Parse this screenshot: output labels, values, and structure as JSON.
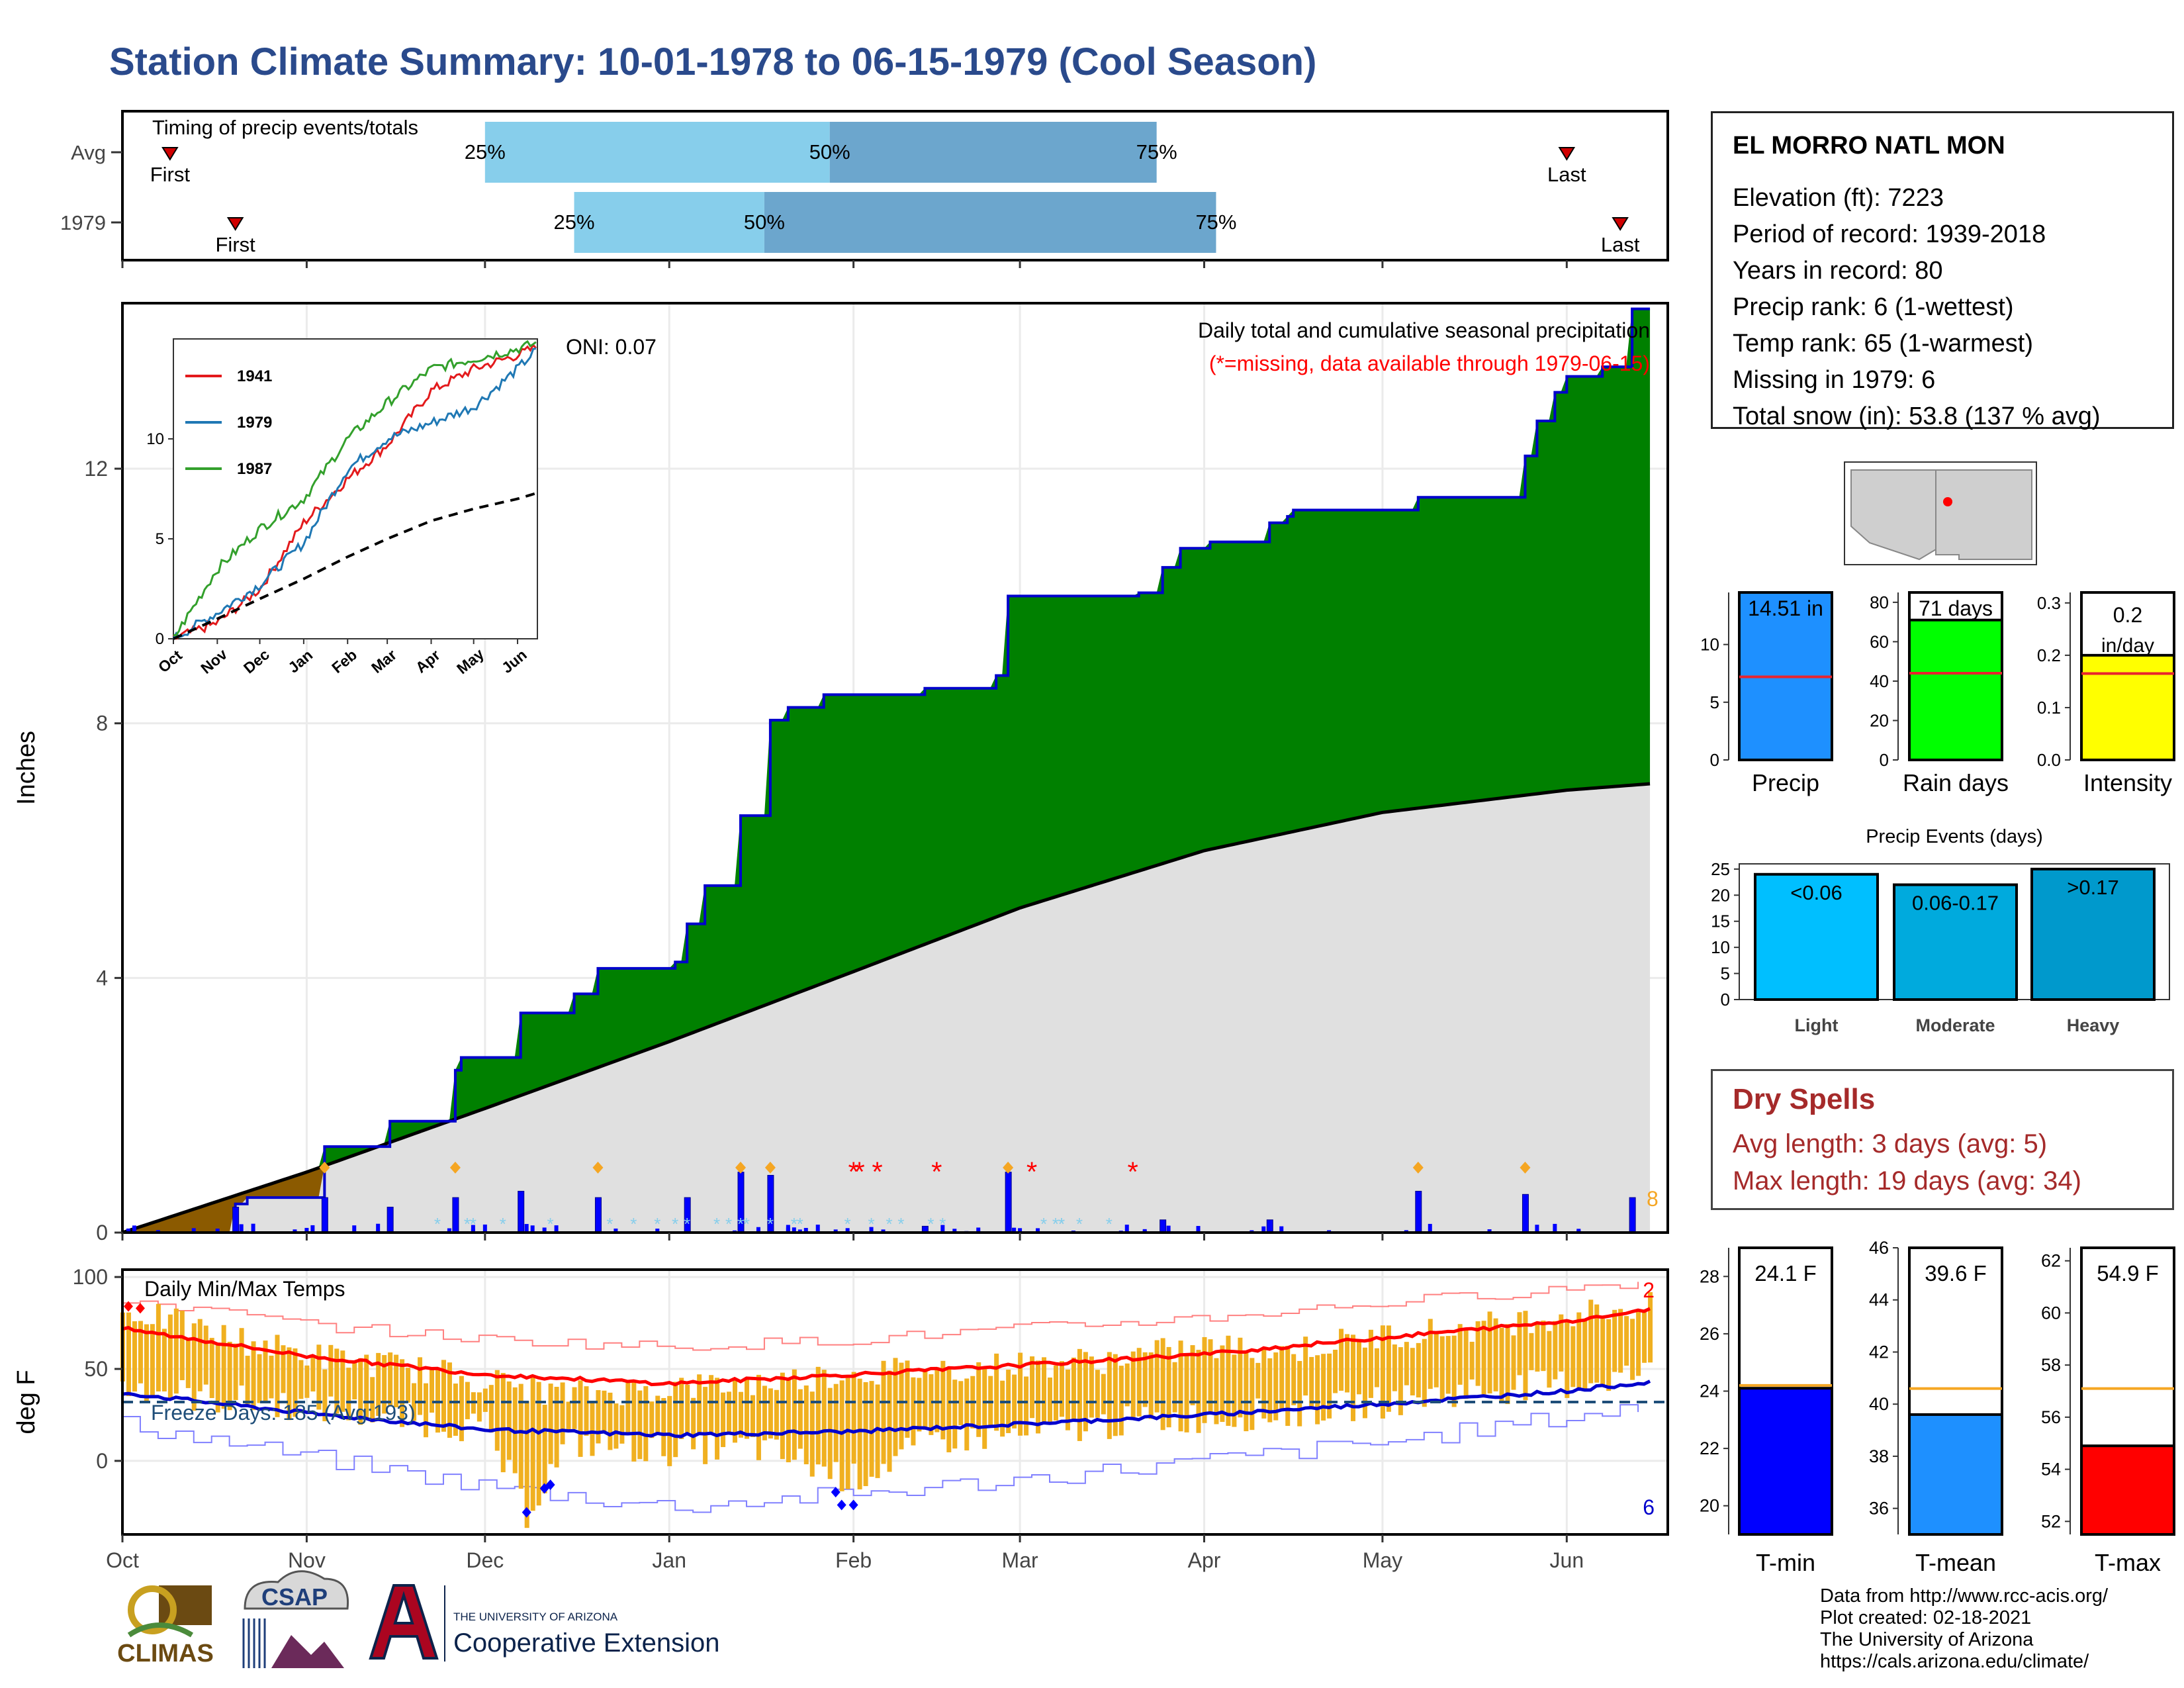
{
  "title": "Station Climate Summary: 10-01-1978 to 06-15-1979 (Cool Season)",
  "colors": {
    "title": "#2a4a8c",
    "accumulated_precip": "#008000",
    "deficit_precip": "#8b5a00",
    "avg_cumulative": "#e0e0e0",
    "daily_precip_bar": "#0000ff",
    "temp_range_bar": "#f0b020",
    "tmax_avg_line": "#ff0000",
    "tmin_avg_line": "#0000cc",
    "missing_marker": "#ff0000",
    "dry_spells_text": "#a52a2a"
  },
  "timing": {
    "label": "Timing of precip events/totals",
    "rows": [
      {
        "row_label": "Avg",
        "first_label": "First",
        "last_label": "Last",
        "first_date": "1978-10-09",
        "p25_date": "1978-12-01",
        "p50_date": "1979-01-28",
        "p75_date": "1979-03-24",
        "last_date": "1979-06-01",
        "p25_label": "25%",
        "p50_label": "50%",
        "p75_label": "75%"
      },
      {
        "row_label": "1979",
        "first_label": "First",
        "last_label": "Last",
        "first_date": "1978-10-20",
        "p25_date": "1978-12-16",
        "p50_date": "1979-01-17",
        "p75_date": "1979-04-03",
        "last_date": "1979-06-10",
        "p25_label": "25%",
        "p50_label": "50%",
        "p75_label": "75%"
      }
    ]
  },
  "precip_panel": {
    "ylabel": "Inches",
    "yticks": [
      0,
      4,
      8,
      12
    ],
    "annotation_title": "Daily total and cumulative seasonal precipitation",
    "annotation_missing": "(*=missing, data available through 1979-06-15)",
    "oni_label": "ONI: 0.07",
    "count_label": "8",
    "months": [
      "Oct",
      "Nov",
      "Dec",
      "Jan",
      "Feb",
      "Mar",
      "Apr",
      "May",
      "Jun"
    ]
  },
  "inset": {
    "legend": [
      {
        "name": "1941",
        "color": "#e31a1c"
      },
      {
        "name": "1979",
        "color": "#1f78b4"
      },
      {
        "name": "1987",
        "color": "#33a02c"
      }
    ],
    "yticks": [
      0,
      5,
      10
    ],
    "xticks": [
      "Oct",
      "Nov",
      "Dec",
      "Jan",
      "Feb",
      "Mar",
      "Apr",
      "May",
      "Jun"
    ]
  },
  "temp_panel": {
    "title": "Daily Min/Max Temps",
    "ylabel": "deg F",
    "yticks": [
      0,
      50,
      100
    ],
    "freeze_label": "Freeze Days: 185 (Avg:193)",
    "record_high_count": "2",
    "record_low_count": "6",
    "freeze_line_value": 32,
    "months": [
      "Oct",
      "Nov",
      "Dec",
      "Jan",
      "Feb",
      "Mar",
      "Apr",
      "May",
      "Jun"
    ]
  },
  "station": {
    "name": "EL MORRO NATL MON",
    "rows": [
      "Elevation (ft): 7223",
      "Period of record: 1939-2018",
      "Years in record: 80",
      "Precip rank: 6 (1-wettest)",
      "Temp rank: 65 (1-warmest)",
      "Missing in 1979: 6",
      "Total snow (in): 53.8 (137 % avg)"
    ]
  },
  "precip_bars": [
    {
      "label": "Precip",
      "value_label": "14.51 in",
      "value": 14.51,
      "avg": 7.2,
      "ymax": 14.51,
      "yticks": [
        0,
        5,
        10
      ],
      "color": "#1e90ff"
    },
    {
      "label": "Rain days",
      "value_label": "71 days",
      "value": 71,
      "avg": 44,
      "ymax": 85,
      "yticks": [
        0,
        20,
        40,
        60,
        80
      ],
      "color": "#00ff00"
    },
    {
      "label": "Intensity",
      "value_label": "0.2 in/day",
      "value": 0.2,
      "avg": 0.165,
      "ymax": 0.32,
      "yticks": [
        0.0,
        0.1,
        0.2,
        0.3
      ],
      "color": "#ffff00"
    }
  ],
  "precip_events": {
    "title": "Precip Events (days)",
    "yticks": [
      0,
      5,
      10,
      15,
      20,
      25
    ],
    "bars": [
      {
        "category": "Light",
        "label": "<0.06",
        "value": 24,
        "color": "#00bfff"
      },
      {
        "category": "Moderate",
        "label": "0.06-0.17",
        "value": 22,
        "color": "#00aadd"
      },
      {
        "category": "Heavy",
        "label": ">0.17",
        "value": 25,
        "color": "#0099cc"
      }
    ]
  },
  "dry_spells": {
    "title": "Dry Spells",
    "rows": [
      "Avg length: 3 days (avg: 5)",
      "Max length: 19 days (avg: 34)"
    ]
  },
  "temp_bars": [
    {
      "label": "T-min",
      "value_label": "24.1 F",
      "value": 24.1,
      "avg": 24.2,
      "ymin": 19,
      "ymax": 29,
      "yticks": [
        20,
        22,
        24,
        26,
        28
      ],
      "color": "#0000ff"
    },
    {
      "label": "T-mean",
      "value_label": "39.6 F",
      "value": 39.6,
      "avg": 40.6,
      "ymin": 35,
      "ymax": 46,
      "yticks": [
        36,
        38,
        40,
        42,
        44,
        46
      ],
      "color": "#1e90ff"
    },
    {
      "label": "T-max",
      "value_label": "54.9 F",
      "value": 54.9,
      "avg": 57.1,
      "ymin": 51.5,
      "ymax": 62.5,
      "yticks": [
        52,
        54,
        56,
        58,
        60,
        62
      ],
      "color": "#ff0000"
    }
  ],
  "footer": {
    "lines": [
      "Data from http://www.rcc-acis.org/",
      "Plot created: 02-18-2021",
      "The University of Arizona",
      "https://cals.arizona.edu/climate/"
    ],
    "climas": "CLIMAS",
    "csap": "CSAP",
    "ua_top": "THE UNIVERSITY OF ARIZONA",
    "ua_bottom": "Cooperative Extension"
  },
  "chart_data": [
    {
      "type": "area",
      "title": "Daily total and cumulative seasonal precipitation",
      "ylabel": "Inches",
      "ylim": [
        0,
        14.6
      ],
      "series": [
        {
          "name": "1979",
          "points": [
            [
              "1978-10-01",
              0
            ],
            [
              "1978-10-20",
              0.45
            ],
            [
              "1978-10-22",
              0.55
            ],
            [
              "1978-11-03",
              0.55
            ],
            [
              "1978-11-04",
              1.35
            ],
            [
              "1978-11-14",
              1.35
            ],
            [
              "1978-11-15",
              1.75
            ],
            [
              "1978-11-25",
              1.75
            ],
            [
              "1978-11-26",
              2.55
            ],
            [
              "1978-11-27",
              2.75
            ],
            [
              "1978-12-01",
              2.75
            ],
            [
              "1978-12-07",
              3.45
            ],
            [
              "1978-12-16",
              3.75
            ],
            [
              "1978-12-20",
              4.15
            ],
            [
              "1979-01-02",
              4.25
            ],
            [
              "1979-01-04",
              4.85
            ],
            [
              "1979-01-07",
              5.45
            ],
            [
              "1979-01-13",
              6.55
            ],
            [
              "1979-01-18",
              8.05
            ],
            [
              "1979-01-21",
              8.25
            ],
            [
              "1979-01-27",
              8.45
            ],
            [
              "1979-02-13",
              8.55
            ],
            [
              "1979-02-25",
              8.75
            ],
            [
              "1979-02-27",
              10.0
            ],
            [
              "1979-03-21",
              10.05
            ],
            [
              "1979-03-25",
              10.45
            ],
            [
              "1979-03-28",
              10.75
            ],
            [
              "1979-04-02",
              10.85
            ],
            [
              "1979-04-12",
              11.15
            ],
            [
              "1979-04-15",
              11.25
            ],
            [
              "1979-04-16",
              11.35
            ],
            [
              "1979-05-07",
              11.55
            ],
            [
              "1979-05-25",
              12.2
            ],
            [
              "1979-05-27",
              12.75
            ],
            [
              "1979-05-30",
              13.2
            ],
            [
              "1979-06-01",
              13.45
            ],
            [
              "1979-06-07",
              13.6
            ],
            [
              "1979-06-12",
              14.51
            ],
            [
              "1979-06-15",
              14.51
            ]
          ]
        },
        {
          "name": "Avg",
          "points": [
            [
              "1978-10-01",
              0
            ],
            [
              "1978-11-01",
              0.95
            ],
            [
              "1978-12-01",
              1.95
            ],
            [
              "1979-01-01",
              3.0
            ],
            [
              "1979-02-01",
              4.1
            ],
            [
              "1979-03-01",
              5.1
            ],
            [
              "1979-04-01",
              6.0
            ],
            [
              "1979-05-01",
              6.6
            ],
            [
              "1979-06-01",
              6.95
            ],
            [
              "1979-06-15",
              7.05
            ]
          ]
        }
      ],
      "daily_precip": [
        [
          "1978-10-20",
          0.4
        ],
        [
          "1978-11-04",
          0.55
        ],
        [
          "1978-11-15",
          0.4
        ],
        [
          "1978-11-26",
          0.55
        ],
        [
          "1978-12-07",
          0.65
        ],
        [
          "1978-12-20",
          0.55
        ],
        [
          "1979-01-04",
          0.55
        ],
        [
          "1979-01-13",
          0.95
        ],
        [
          "1979-01-18",
          0.9
        ],
        [
          "1979-02-13",
          0.1
        ],
        [
          "1979-02-27",
          0.95
        ],
        [
          "1979-03-25",
          0.2
        ],
        [
          "1979-04-12",
          0.2
        ],
        [
          "1979-05-07",
          0.65
        ],
        [
          "1979-05-25",
          0.6
        ],
        [
          "1979-06-12",
          0.55
        ]
      ],
      "missing_dates": [
        "1979-02-01",
        "1979-02-02",
        "1979-02-05",
        "1979-02-15",
        "1979-03-03",
        "1979-03-20"
      ]
    },
    {
      "type": "line",
      "title": "",
      "xlabel": "",
      "ylim": [
        0,
        15
      ],
      "series": [
        {
          "name": "1941",
          "points": [
            [
              "1978-10-01",
              0
            ],
            [
              "1978-11-01",
              0.8
            ],
            [
              "1978-12-01",
              2.5
            ],
            [
              "1979-01-01",
              5.8
            ],
            [
              "1979-02-01",
              8.0
            ],
            [
              "1979-03-01",
              9.7
            ],
            [
              "1979-04-01",
              12.4
            ],
            [
              "1979-05-01",
              13.5
            ],
            [
              "1979-06-01",
              14.2
            ],
            [
              "1979-06-15",
              14.6
            ]
          ]
        },
        {
          "name": "1979",
          "points": [
            [
              "1978-10-01",
              0
            ],
            [
              "1978-11-01",
              1.3
            ],
            [
              "1978-12-01",
              2.7
            ],
            [
              "1979-01-01",
              4.8
            ],
            [
              "1979-02-01",
              8.5
            ],
            [
              "1979-03-01",
              10.0
            ],
            [
              "1979-04-01",
              10.8
            ],
            [
              "1979-05-01",
              11.6
            ],
            [
              "1979-06-01",
              13.5
            ],
            [
              "1979-06-15",
              14.5
            ]
          ]
        },
        {
          "name": "1987",
          "points": [
            [
              "1978-10-01",
              0
            ],
            [
              "1978-11-01",
              3.5
            ],
            [
              "1978-12-01",
              5.5
            ],
            [
              "1979-01-01",
              7.0
            ],
            [
              "1979-02-01",
              10.0
            ],
            [
              "1979-03-01",
              11.8
            ],
            [
              "1979-04-01",
              13.5
            ],
            [
              "1979-05-01",
              14.0
            ],
            [
              "1979-06-01",
              14.5
            ],
            [
              "1979-06-15",
              14.8
            ]
          ]
        },
        {
          "name": "Avg",
          "points": [
            [
              "1978-10-01",
              0
            ],
            [
              "1978-11-01",
              1.0
            ],
            [
              "1978-12-01",
              2.0
            ],
            [
              "1979-01-01",
              3.0
            ],
            [
              "1979-02-01",
              4.1
            ],
            [
              "1979-03-01",
              5.0
            ],
            [
              "1979-04-01",
              5.9
            ],
            [
              "1979-05-01",
              6.5
            ],
            [
              "1979-06-01",
              7.0
            ],
            [
              "1979-06-15",
              7.3
            ]
          ]
        }
      ]
    },
    {
      "type": "bar",
      "title": "Daily Min/Max Temps",
      "ylabel": "deg F",
      "ylim": [
        -40,
        104
      ],
      "avg_tmax": [
        [
          "1978-10-01",
          72
        ],
        [
          "1978-11-01",
          57
        ],
        [
          "1978-12-01",
          47
        ],
        [
          "1979-01-01",
          42
        ],
        [
          "1979-02-01",
          47
        ],
        [
          "1979-03-01",
          52
        ],
        [
          "1979-04-01",
          58
        ],
        [
          "1979-05-01",
          67
        ],
        [
          "1979-06-01",
          76
        ],
        [
          "1979-06-15",
          82
        ]
      ],
      "avg_tmin": [
        [
          "1978-10-01",
          37
        ],
        [
          "1978-11-01",
          26
        ],
        [
          "1978-12-01",
          17
        ],
        [
          "1979-01-01",
          14
        ],
        [
          "1979-02-01",
          16
        ],
        [
          "1979-03-01",
          20
        ],
        [
          "1979-04-01",
          25
        ],
        [
          "1979-05-01",
          31
        ],
        [
          "1979-06-01",
          38
        ],
        [
          "1979-06-15",
          43
        ]
      ],
      "record_high": [
        [
          "1978-10-01",
          88
        ],
        [
          "1978-11-01",
          74
        ],
        [
          "1978-12-01",
          66
        ],
        [
          "1979-01-01",
          62
        ],
        [
          "1979-02-01",
          66
        ],
        [
          "1979-03-01",
          72
        ],
        [
          "1979-04-01",
          78
        ],
        [
          "1979-05-01",
          86
        ],
        [
          "1979-06-01",
          94
        ],
        [
          "1979-06-15",
          98
        ]
      ],
      "record_low": [
        [
          "1978-10-01",
          20
        ],
        [
          "1978-11-01",
          2
        ],
        [
          "1978-12-01",
          -14
        ],
        [
          "1979-01-01",
          -25
        ],
        [
          "1979-02-01",
          -18
        ],
        [
          "1979-03-01",
          -10
        ],
        [
          "1979-04-01",
          0
        ],
        [
          "1979-05-01",
          10
        ],
        [
          "1979-06-01",
          24
        ],
        [
          "1979-06-15",
          30
        ]
      ],
      "daily_tmax": [
        [
          "1978-10-05",
          80
        ],
        [
          "1978-10-15",
          70
        ],
        [
          "1978-11-01",
          58
        ],
        [
          "1978-11-15",
          52
        ],
        [
          "1978-12-01",
          44
        ],
        [
          "1978-12-15",
          36
        ],
        [
          "1979-01-01",
          40
        ],
        [
          "1979-01-15",
          42
        ],
        [
          "1979-02-01",
          48
        ],
        [
          "1979-02-15",
          50
        ],
        [
          "1979-03-01",
          52
        ],
        [
          "1979-03-15",
          55
        ],
        [
          "1979-04-01",
          62
        ],
        [
          "1979-04-15",
          60
        ],
        [
          "1979-05-01",
          68
        ],
        [
          "1979-05-15",
          72
        ],
        [
          "1979-06-01",
          80
        ],
        [
          "1979-06-15",
          84
        ]
      ],
      "daily_tmin": [
        [
          "1978-10-05",
          40
        ],
        [
          "1978-10-15",
          34
        ],
        [
          "1978-11-01",
          30
        ],
        [
          "1978-11-15",
          24
        ],
        [
          "1978-12-01",
          18
        ],
        [
          "1978-12-08",
          -28
        ],
        [
          "1978-12-15",
          10
        ],
        [
          "1979-01-01",
          6
        ],
        [
          "1979-01-15",
          8
        ],
        [
          "1979-02-01",
          -10
        ],
        [
          "1979-02-15",
          12
        ],
        [
          "1979-03-01",
          14
        ],
        [
          "1979-03-15",
          20
        ],
        [
          "1979-04-01",
          24
        ],
        [
          "1979-04-15",
          26
        ],
        [
          "1979-05-01",
          32
        ],
        [
          "1979-05-15",
          38
        ],
        [
          "1979-06-01",
          42
        ],
        [
          "1979-06-15",
          48
        ]
      ]
    },
    {
      "type": "bar",
      "categories": [
        "Precip"
      ],
      "values": [
        14.51
      ],
      "avg": 7.2
    },
    {
      "type": "bar",
      "categories": [
        "Rain days"
      ],
      "values": [
        71
      ],
      "avg": 44
    },
    {
      "type": "bar",
      "categories": [
        "Intensity"
      ],
      "values": [
        0.2
      ],
      "avg": 0.165
    },
    {
      "type": "bar",
      "title": "Precip Events (days)",
      "categories": [
        "Light",
        "Moderate",
        "Heavy"
      ],
      "values": [
        24,
        22,
        25
      ]
    },
    {
      "type": "bar",
      "categories": [
        "T-min"
      ],
      "values": [
        24.1
      ],
      "avg": 24.2
    },
    {
      "type": "bar",
      "categories": [
        "T-mean"
      ],
      "values": [
        39.6
      ],
      "avg": 40.6
    },
    {
      "type": "bar",
      "categories": [
        "T-max"
      ],
      "values": [
        54.9
      ],
      "avg": 57.1
    }
  ]
}
